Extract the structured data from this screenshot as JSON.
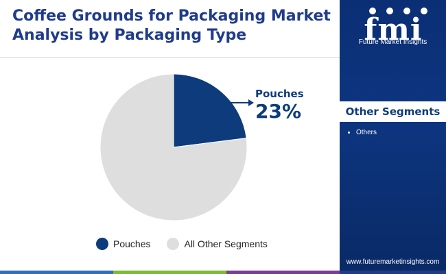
{
  "title": "Coffee Grounds for Packaging Market Analysis by Packaging Type",
  "chart_data": {
    "type": "pie",
    "slices": [
      {
        "label": "Pouches",
        "value": 23,
        "color": "#0d3b7c"
      },
      {
        "label": "All Other Segments",
        "value": 77,
        "color": "#dedede"
      }
    ]
  },
  "callout": {
    "label": "Pouches",
    "value": "23%"
  },
  "legend": [
    {
      "label": "Pouches",
      "color": "#0d3b7c"
    },
    {
      "label": "All Other Segments",
      "color": "#dedede"
    }
  ],
  "sidebar": {
    "logo_text": "fmi",
    "logo_subtitle": "Future Market Insights",
    "segments_heading": "Other Segments",
    "segments": [
      "Others"
    ],
    "website": "www.futuremarketinsights.com"
  },
  "colors": {
    "accent": "#0d3b7c",
    "title": "#1f3b8a",
    "sidebar": "#0b2f75",
    "stripe": [
      "#2f6fbf",
      "#7dbb2f",
      "#7a3c96",
      "#1f3b8a"
    ]
  }
}
